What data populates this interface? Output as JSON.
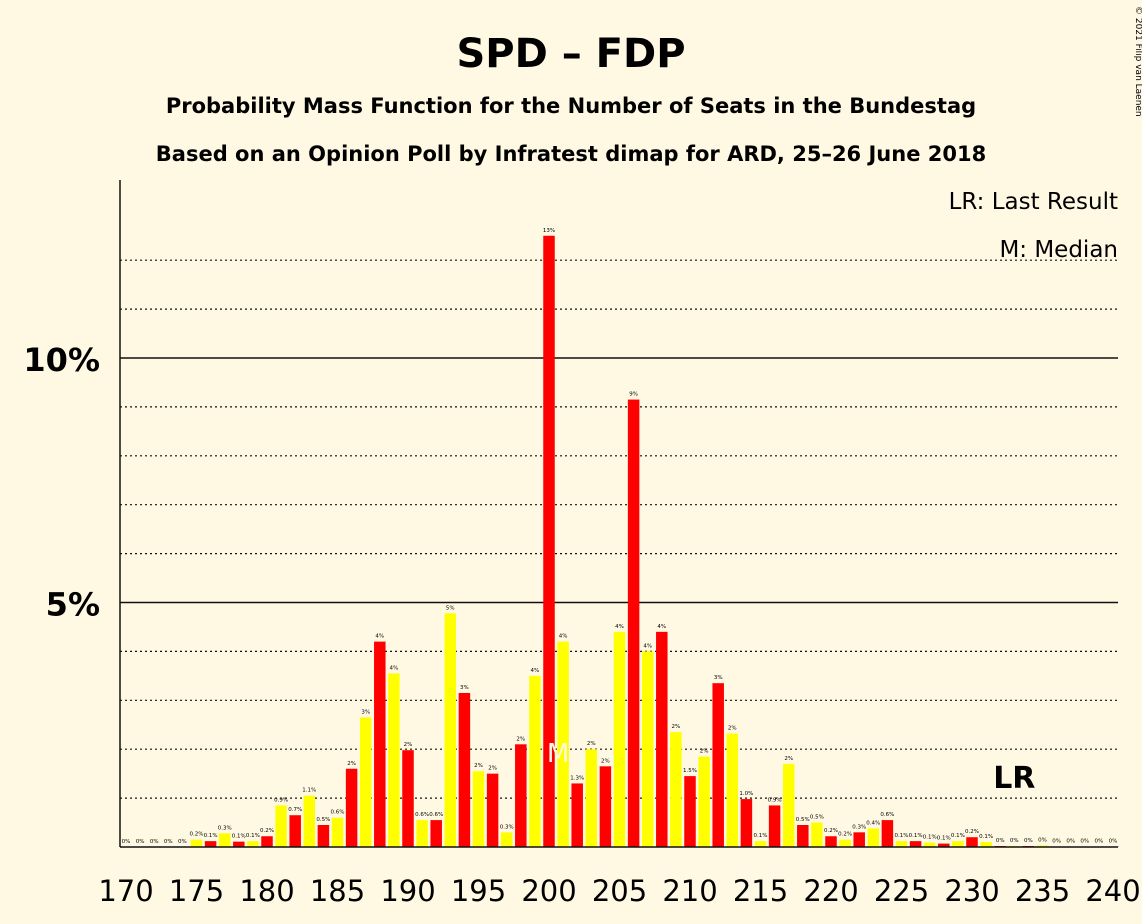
{
  "colors": {
    "background": "#fff9e3",
    "spd": "#ff0000",
    "fdp": "#ffff00",
    "text": "#111111"
  },
  "chart_data": {
    "type": "bar",
    "title": "SPD – FDP",
    "subtitle1": "Probability Mass Function for the Number of Seats in the Bundestag",
    "subtitle2": "Based on an Opinion Poll by Infratest dimap for ARD, 25–26 June 2018",
    "copyright": "© 2021 Filip van Laenen",
    "legend": {
      "placement": "top-right",
      "lr": "LR: Last Result",
      "median": "M: Median"
    },
    "ylim": [
      0,
      13.5
    ],
    "xlim": [
      170,
      240
    ],
    "y_ticks": [
      {
        "value": 5,
        "label": "5%"
      },
      {
        "value": 10,
        "label": "10%"
      }
    ],
    "x_ticks": [
      "170",
      "175",
      "180",
      "185",
      "190",
      "195",
      "200",
      "205",
      "210",
      "215",
      "220",
      "225",
      "230",
      "235",
      "240"
    ],
    "median_seat": 201,
    "median_label": "M",
    "last_result_seat": 233,
    "last_result_label": "LR",
    "bars": [
      {
        "seat": 170,
        "value": 0,
        "label": "0%"
      },
      {
        "seat": 171,
        "value": 0,
        "label": "0%"
      },
      {
        "seat": 172,
        "value": 0,
        "label": "0%"
      },
      {
        "seat": 173,
        "value": 0,
        "label": "0%"
      },
      {
        "seat": 174,
        "value": 0,
        "label": "0%"
      },
      {
        "seat": 175,
        "value": 0.15,
        "label": "0.2%"
      },
      {
        "seat": 176,
        "value": 0.12,
        "label": "0.1%"
      },
      {
        "seat": 177,
        "value": 0.28,
        "label": "0.3%"
      },
      {
        "seat": 178,
        "value": 0.11,
        "label": "0.1%"
      },
      {
        "seat": 179,
        "value": 0.12,
        "label": "0.1%"
      },
      {
        "seat": 180,
        "value": 0.22,
        "label": "0.2%"
      },
      {
        "seat": 181,
        "value": 0.85,
        "label": "0.9%"
      },
      {
        "seat": 182,
        "value": 0.65,
        "label": "0.7%"
      },
      {
        "seat": 183,
        "value": 1.05,
        "label": "1.1%"
      },
      {
        "seat": 184,
        "value": 0.45,
        "label": "0.5%"
      },
      {
        "seat": 185,
        "value": 0.6,
        "label": "0.6%"
      },
      {
        "seat": 186,
        "value": 1.6,
        "label": "2%"
      },
      {
        "seat": 187,
        "value": 2.65,
        "label": "3%"
      },
      {
        "seat": 188,
        "value": 4.2,
        "label": "4%"
      },
      {
        "seat": 189,
        "value": 3.55,
        "label": "4%"
      },
      {
        "seat": 190,
        "value": 1.98,
        "label": "2%"
      },
      {
        "seat": 191,
        "value": 0.55,
        "label": "0.6%"
      },
      {
        "seat": 192,
        "value": 0.55,
        "label": "0.6%"
      },
      {
        "seat": 193,
        "value": 4.78,
        "label": "5%"
      },
      {
        "seat": 194,
        "value": 3.15,
        "label": "3%"
      },
      {
        "seat": 195,
        "value": 1.55,
        "label": "2%"
      },
      {
        "seat": 196,
        "value": 1.5,
        "label": "2%"
      },
      {
        "seat": 197,
        "value": 0.3,
        "label": "0.3%"
      },
      {
        "seat": 198,
        "value": 2.1,
        "label": "2%"
      },
      {
        "seat": 199,
        "value": 3.5,
        "label": "4%"
      },
      {
        "seat": 200,
        "value": 12.5,
        "label": "13%"
      },
      {
        "seat": 201,
        "value": 4.2,
        "label": "4%"
      },
      {
        "seat": 202,
        "value": 1.3,
        "label": "1.3%"
      },
      {
        "seat": 203,
        "value": 2.0,
        "label": "2%"
      },
      {
        "seat": 204,
        "value": 1.65,
        "label": "2%"
      },
      {
        "seat": 205,
        "value": 4.4,
        "label": "4%"
      },
      {
        "seat": 206,
        "value": 9.15,
        "label": "9%"
      },
      {
        "seat": 207,
        "value": 4.0,
        "label": "4%"
      },
      {
        "seat": 208,
        "value": 4.4,
        "label": "4%"
      },
      {
        "seat": 209,
        "value": 2.35,
        "label": "2%"
      },
      {
        "seat": 210,
        "value": 1.45,
        "label": "1.5%"
      },
      {
        "seat": 211,
        "value": 1.85,
        "label": "2%"
      },
      {
        "seat": 212,
        "value": 3.35,
        "label": "3%"
      },
      {
        "seat": 213,
        "value": 2.32,
        "label": "2%"
      },
      {
        "seat": 214,
        "value": 0.98,
        "label": "1.0%"
      },
      {
        "seat": 215,
        "value": 0.12,
        "label": "0.1%"
      },
      {
        "seat": 216,
        "value": 0.85,
        "label": "0.9%"
      },
      {
        "seat": 217,
        "value": 1.7,
        "label": "2%"
      },
      {
        "seat": 218,
        "value": 0.45,
        "label": "0.5%"
      },
      {
        "seat": 219,
        "value": 0.5,
        "label": "0.5%"
      },
      {
        "seat": 220,
        "value": 0.22,
        "label": "0.2%"
      },
      {
        "seat": 221,
        "value": 0.15,
        "label": "0.2%"
      },
      {
        "seat": 222,
        "value": 0.3,
        "label": "0.3%"
      },
      {
        "seat": 223,
        "value": 0.38,
        "label": "0.4%"
      },
      {
        "seat": 224,
        "value": 0.55,
        "label": "0.6%"
      },
      {
        "seat": 225,
        "value": 0.12,
        "label": "0.1%"
      },
      {
        "seat": 226,
        "value": 0.12,
        "label": "0.1%"
      },
      {
        "seat": 227,
        "value": 0.09,
        "label": "0.1%"
      },
      {
        "seat": 228,
        "value": 0.07,
        "label": "0.1%"
      },
      {
        "seat": 229,
        "value": 0.12,
        "label": "0.1%"
      },
      {
        "seat": 230,
        "value": 0.2,
        "label": "0.2%"
      },
      {
        "seat": 231,
        "value": 0.1,
        "label": "0.1%"
      },
      {
        "seat": 232,
        "value": 0.02,
        "label": "0%"
      },
      {
        "seat": 233,
        "value": 0.02,
        "label": "0%"
      },
      {
        "seat": 234,
        "value": 0.02,
        "label": "0%"
      },
      {
        "seat": 235,
        "value": 0.03,
        "label": "0%"
      },
      {
        "seat": 236,
        "value": 0.01,
        "label": "0%"
      },
      {
        "seat": 237,
        "value": 0.01,
        "label": "0%"
      },
      {
        "seat": 238,
        "value": 0.01,
        "label": "0%"
      },
      {
        "seat": 239,
        "value": 0.01,
        "label": "0%"
      },
      {
        "seat": 240,
        "value": 0.01,
        "label": "0%"
      }
    ]
  }
}
